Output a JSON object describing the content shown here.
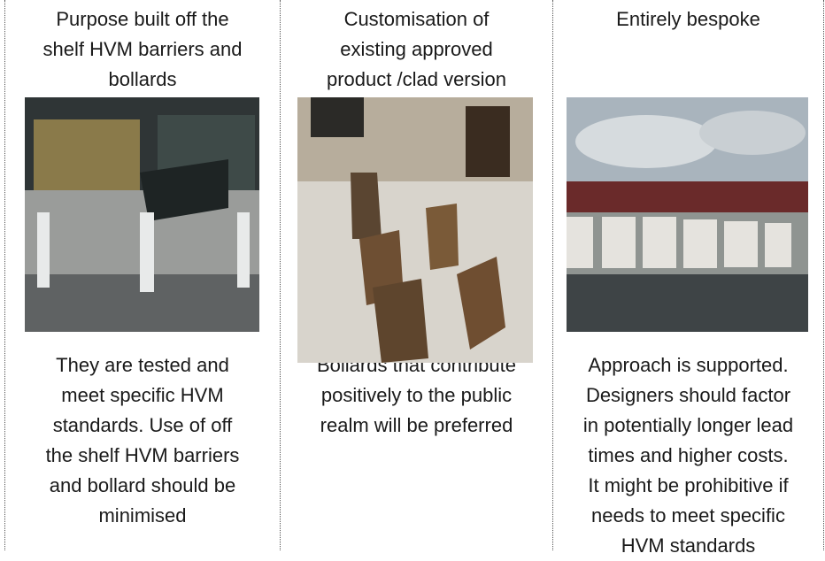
{
  "columns": [
    {
      "heading": [
        "Purpose built off the",
        "shelf HVM barriers and",
        "bollards"
      ],
      "body": [
        "They are tested and",
        "meet specific HVM",
        "standards. Use of off",
        "the shelf HVM barriers",
        "and bollard should be",
        "minimised"
      ]
    },
    {
      "heading": [
        "Customisation of",
        "existing approved",
        "product /clad version"
      ],
      "body": [
        "Bollards that contribute",
        "positively to the public",
        "realm will be preferred"
      ]
    },
    {
      "heading": [
        "Entirely bespoke"
      ],
      "body": [
        "Approach is supported.",
        "Designers should factor",
        "in potentially longer lead",
        "times and higher costs.",
        "It might be prohibitive if",
        "needs to meet specific",
        "HVM standards"
      ]
    }
  ]
}
